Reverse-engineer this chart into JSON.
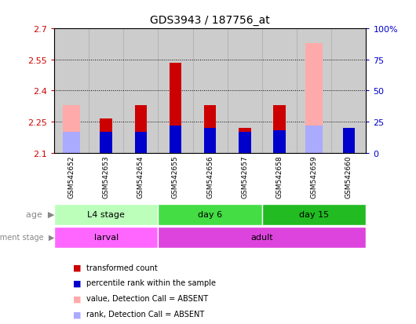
{
  "title": "GDS3943 / 187756_at",
  "samples": [
    "GSM542652",
    "GSM542653",
    "GSM542654",
    "GSM542655",
    "GSM542656",
    "GSM542657",
    "GSM542658",
    "GSM542659",
    "GSM542660"
  ],
  "ylim_left": [
    2.1,
    2.7
  ],
  "ylim_right": [
    0,
    100
  ],
  "yticks_left": [
    2.1,
    2.25,
    2.4,
    2.55,
    2.7
  ],
  "yticks_right": [
    0,
    25,
    50,
    75,
    100
  ],
  "ytick_labels_left": [
    "2.1",
    "2.25",
    "2.4",
    "2.55",
    "2.7"
  ],
  "ytick_labels_right": [
    "0",
    "25",
    "50",
    "75",
    "100%"
  ],
  "hlines": [
    2.25,
    2.4,
    2.55
  ],
  "bar_bottom": 2.1,
  "transformed_count": [
    null,
    2.265,
    2.33,
    2.535,
    2.33,
    2.22,
    2.33,
    null,
    2.155
  ],
  "percentile_rank": [
    null,
    17,
    17,
    22,
    20,
    17,
    18,
    null,
    20
  ],
  "absent_value": [
    2.33,
    null,
    null,
    null,
    null,
    null,
    null,
    2.63,
    null
  ],
  "absent_rank": [
    17,
    null,
    null,
    null,
    null,
    null,
    null,
    22,
    null
  ],
  "bar_width": 0.35,
  "absent_bar_width": 0.5,
  "color_red": "#cc0000",
  "color_blue": "#0000cc",
  "color_absent_pink": "#ffaaaa",
  "color_absent_blue": "#aaaaff",
  "age_groups": [
    {
      "label": "L4 stage",
      "start": 0,
      "end": 3,
      "color": "#bbffbb"
    },
    {
      "label": "day 6",
      "start": 3,
      "end": 6,
      "color": "#44dd44"
    },
    {
      "label": "day 15",
      "start": 6,
      "end": 9,
      "color": "#22bb22"
    }
  ],
  "dev_groups": [
    {
      "label": "larval",
      "start": 0,
      "end": 3,
      "color": "#ff66ff"
    },
    {
      "label": "adult",
      "start": 3,
      "end": 9,
      "color": "#dd44dd"
    }
  ],
  "legend_items": [
    {
      "label": "transformed count",
      "color": "#cc0000"
    },
    {
      "label": "percentile rank within the sample",
      "color": "#0000cc"
    },
    {
      "label": "value, Detection Call = ABSENT",
      "color": "#ffaaaa"
    },
    {
      "label": "rank, Detection Call = ABSENT",
      "color": "#aaaaff"
    }
  ],
  "ylabel_left_color": "#cc0000",
  "ylabel_right_color": "#0000cc",
  "bg_color": "#ffffff",
  "sample_bg_color": "#cccccc",
  "sample_border_color": "#aaaaaa"
}
